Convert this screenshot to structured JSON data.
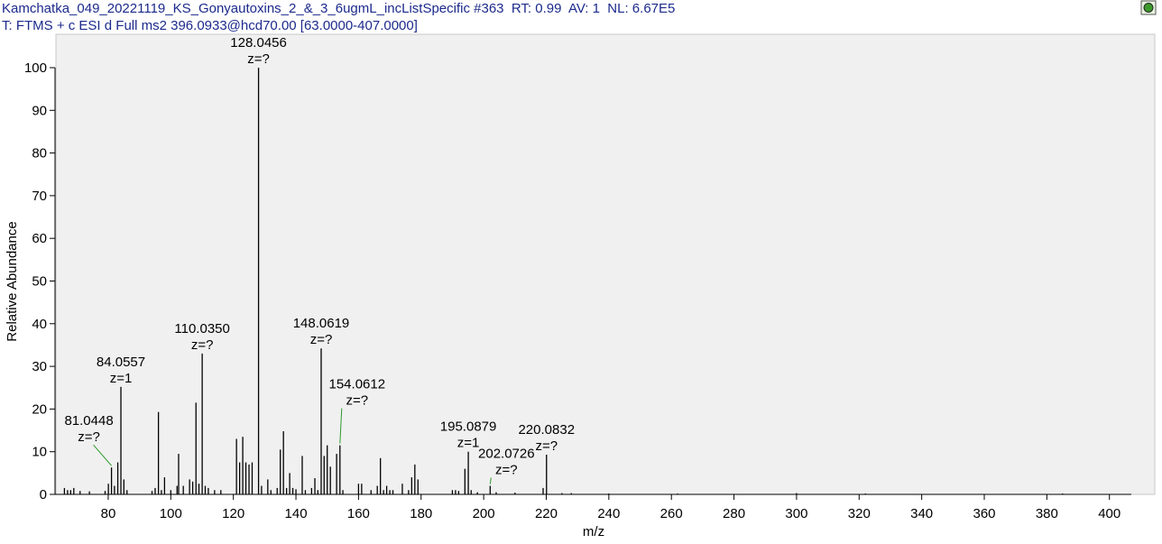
{
  "chart_data": {
    "type": "spectrum",
    "title": "Kamchatka_049_20221119_KS_Gonyautoxins_2_&_3_6ugmL_incListSpecific #363  RT: 0.99  AV: 1  NL: 6.67E5",
    "subtitle": "T: FTMS + c ESI d Full ms2 396.0933@hcd70.00 [63.0000-407.0000]",
    "x_label": "m/z",
    "y_label": "Relative Abundance",
    "color": "#000000",
    "x": [
      66,
      67,
      68,
      69,
      71,
      74,
      79,
      80.05,
      81.0448,
      82,
      83.06,
      84.0557,
      85,
      86,
      94,
      95,
      96.05,
      97,
      98,
      100,
      102,
      102.5,
      104,
      106,
      107,
      108.05,
      109,
      110.035,
      111,
      112,
      114,
      116,
      121,
      122,
      123,
      124,
      125,
      126,
      128.0456,
      129,
      131,
      132,
      134,
      135,
      136,
      137,
      138,
      139,
      140,
      142,
      143,
      145,
      146.05,
      147,
      148.0619,
      149,
      150,
      151,
      153,
      154.0612,
      155,
      160,
      161,
      164,
      166,
      167,
      168,
      169,
      170,
      171,
      174,
      176,
      177,
      178,
      179,
      190,
      191,
      192,
      194,
      195.0879,
      196,
      198,
      202.0726,
      204,
      210,
      219,
      220.0832,
      225,
      228,
      240,
      262,
      300,
      322,
      385
    ],
    "values": [
      1.5,
      1,
      1,
      1.5,
      0.8,
      0.7,
      0.8,
      2.5,
      6.3,
      2,
      7.5,
      25.2,
      3.5,
      1,
      0.8,
      1.5,
      19.3,
      1,
      4,
      1,
      2,
      9.5,
      2,
      3.5,
      3,
      21.5,
      2.5,
      33,
      2,
      1.5,
      1,
      1,
      13,
      7.5,
      13.5,
      7.5,
      7,
      7.5,
      100,
      2,
      3.5,
      1,
      1.5,
      10.5,
      14.8,
      1.5,
      5,
      1.5,
      1.2,
      9,
      1,
      1.5,
      3.8,
      1,
      34.2,
      9,
      11.5,
      6.5,
      9.5,
      11.5,
      1,
      2.5,
      2.5,
      1,
      2,
      8.5,
      1,
      2,
      1,
      1,
      2.5,
      1,
      4,
      7,
      3.5,
      1,
      1,
      0.8,
      6,
      10,
      1,
      0.5,
      2,
      0.5,
      0.4,
      1.5,
      9.3,
      0.3,
      0.3,
      0.2,
      0.2,
      0.3,
      0.2,
      0.2
    ],
    "annotations": [
      {
        "x": 81.0448,
        "text": "81.0448",
        "charge": "z=?"
      },
      {
        "x": 84.0557,
        "text": "84.0557",
        "charge": "z=1"
      },
      {
        "x": 110.035,
        "text": "110.0350",
        "charge": "z=?"
      },
      {
        "x": 128.0456,
        "text": "128.0456",
        "charge": "z=?"
      },
      {
        "x": 148.0619,
        "text": "148.0619",
        "charge": "z=?"
      },
      {
        "x": 154.0612,
        "text": "154.0612",
        "charge": "z=?"
      },
      {
        "x": 195.0879,
        "text": "195.0879",
        "charge": "z=1"
      },
      {
        "x": 202.0726,
        "text": "202.0726",
        "charge": "z=?"
      },
      {
        "x": 220.0832,
        "text": "220.0832",
        "charge": "z=?"
      }
    ],
    "xlim": [
      63,
      407
    ],
    "ylim": [
      0,
      100
    ],
    "xticks": [
      80,
      100,
      120,
      140,
      160,
      180,
      200,
      220,
      240,
      260,
      280,
      300,
      320,
      340,
      360,
      380,
      400
    ],
    "yticks": [
      0,
      10,
      20,
      30,
      40,
      50,
      60,
      70,
      80,
      90,
      100
    ]
  }
}
